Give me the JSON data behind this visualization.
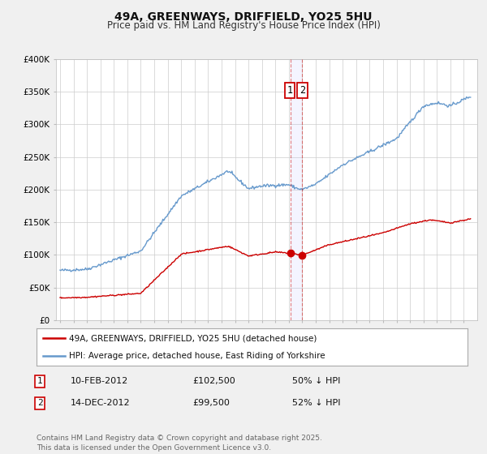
{
  "title": "49A, GREENWAYS, DRIFFIELD, YO25 5HU",
  "subtitle": "Price paid vs. HM Land Registry's House Price Index (HPI)",
  "ylim": [
    0,
    400000
  ],
  "yticks": [
    0,
    50000,
    100000,
    150000,
    200000,
    250000,
    300000,
    350000,
    400000
  ],
  "ytick_labels": [
    "£0",
    "£50K",
    "£100K",
    "£150K",
    "£200K",
    "£250K",
    "£300K",
    "£350K",
    "£400K"
  ],
  "background_color": "#f0f0f0",
  "plot_bg_color": "#ffffff",
  "grid_color": "#cccccc",
  "hpi_color": "#6699cc",
  "price_color": "#cc0000",
  "vline_color": "#cc0000",
  "vline_alpha": 0.12,
  "sale1_x": 2012.11,
  "sale2_x": 2012.95,
  "sale1_price": 102500,
  "sale2_price": 99500,
  "marker_color": "#cc0000",
  "legend_label_price": "49A, GREENWAYS, DRIFFIELD, YO25 5HU (detached house)",
  "legend_label_hpi": "HPI: Average price, detached house, East Riding of Yorkshire",
  "annotation1_date": "10-FEB-2012",
  "annotation2_date": "14-DEC-2012",
  "annotation1_price": "£102,500",
  "annotation2_price": "£99,500",
  "annotation1_pct": "50% ↓ HPI",
  "annotation2_pct": "52% ↓ HPI",
  "footer": "Contains HM Land Registry data © Crown copyright and database right 2025.\nThis data is licensed under the Open Government Licence v3.0.",
  "title_fontsize": 10,
  "subtitle_fontsize": 8.5,
  "tick_fontsize": 7.5,
  "legend_fontsize": 7.5,
  "annotation_fontsize": 8,
  "footer_fontsize": 6.5
}
